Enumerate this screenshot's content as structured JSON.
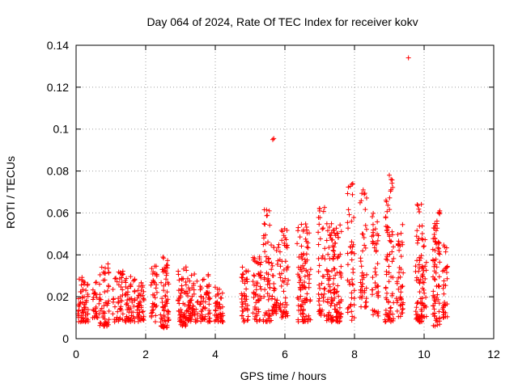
{
  "chart_data": {
    "type": "scatter",
    "title": "Day 064 of 2024, Rate Of TEC Index for receiver kokv",
    "xlabel": "GPS time / hours",
    "ylabel": "ROTI / TECUs",
    "xlim": [
      0,
      12
    ],
    "ylim": [
      0,
      0.14
    ],
    "xticks": [
      0,
      2,
      4,
      6,
      8,
      10,
      12
    ],
    "xtick_labels": [
      "0",
      "2",
      "4",
      "6",
      "8",
      "10",
      "12"
    ],
    "yticks": [
      0,
      0.02,
      0.04,
      0.06,
      0.08,
      0.1,
      0.12,
      0.14
    ],
    "ytick_labels": [
      "0",
      "0.02",
      "0.04",
      "0.06",
      "0.08",
      "0.1",
      "0.12",
      "0.14"
    ],
    "grid": true,
    "marker": "+",
    "color": "#ff0000",
    "series": [
      {
        "name": "ROTI",
        "clusters": [
          {
            "x": 0.2,
            "width": 0.3,
            "ymin": 0.008,
            "ymax": 0.03,
            "n": 60
          },
          {
            "x": 0.55,
            "width": 0.15,
            "ymin": 0.01,
            "ymax": 0.028,
            "n": 25
          },
          {
            "x": 0.8,
            "width": 0.3,
            "ymin": 0.006,
            "ymax": 0.036,
            "n": 55
          },
          {
            "x": 1.2,
            "width": 0.3,
            "ymin": 0.008,
            "ymax": 0.033,
            "n": 45
          },
          {
            "x": 1.55,
            "width": 0.3,
            "ymin": 0.008,
            "ymax": 0.03,
            "n": 55
          },
          {
            "x": 1.85,
            "width": 0.2,
            "ymin": 0.008,
            "ymax": 0.027,
            "n": 45
          },
          {
            "x": 2.25,
            "width": 0.2,
            "ymin": 0.008,
            "ymax": 0.035,
            "n": 35
          },
          {
            "x": 2.55,
            "width": 0.25,
            "ymin": 0.005,
            "ymax": 0.039,
            "n": 70
          },
          {
            "x": 3.05,
            "width": 0.25,
            "ymin": 0.006,
            "ymax": 0.037,
            "n": 60
          },
          {
            "x": 3.35,
            "width": 0.3,
            "ymin": 0.008,
            "ymax": 0.031,
            "n": 60
          },
          {
            "x": 3.7,
            "width": 0.3,
            "ymin": 0.008,
            "ymax": 0.031,
            "n": 60
          },
          {
            "x": 4.1,
            "width": 0.25,
            "ymin": 0.008,
            "ymax": 0.025,
            "n": 45
          },
          {
            "x": 4.85,
            "width": 0.2,
            "ymin": 0.008,
            "ymax": 0.038,
            "n": 45
          },
          {
            "x": 5.2,
            "width": 0.25,
            "ymin": 0.008,
            "ymax": 0.04,
            "n": 55
          },
          {
            "x": 5.5,
            "width": 0.25,
            "ymin": 0.008,
            "ymax": 0.062,
            "n": 55
          },
          {
            "x": 5.75,
            "width": 0.25,
            "ymin": 0.012,
            "ymax": 0.045,
            "n": 45
          },
          {
            "x": 6.0,
            "width": 0.2,
            "ymin": 0.01,
            "ymax": 0.054,
            "n": 45
          },
          {
            "x": 6.45,
            "width": 0.2,
            "ymin": 0.008,
            "ymax": 0.057,
            "n": 55
          },
          {
            "x": 6.65,
            "width": 0.2,
            "ymin": 0.008,
            "ymax": 0.055,
            "n": 45
          },
          {
            "x": 7.05,
            "width": 0.2,
            "ymin": 0.01,
            "ymax": 0.063,
            "n": 45
          },
          {
            "x": 7.3,
            "width": 0.2,
            "ymin": 0.008,
            "ymax": 0.055,
            "n": 55
          },
          {
            "x": 7.5,
            "width": 0.25,
            "ymin": 0.008,
            "ymax": 0.055,
            "n": 75
          },
          {
            "x": 7.9,
            "width": 0.2,
            "ymin": 0.008,
            "ymax": 0.075,
            "n": 45
          },
          {
            "x": 8.25,
            "width": 0.2,
            "ymin": 0.015,
            "ymax": 0.072,
            "n": 45
          },
          {
            "x": 8.6,
            "width": 0.2,
            "ymin": 0.01,
            "ymax": 0.06,
            "n": 45
          },
          {
            "x": 9.0,
            "width": 0.25,
            "ymin": 0.008,
            "ymax": 0.079,
            "n": 75
          },
          {
            "x": 9.3,
            "width": 0.2,
            "ymin": 0.01,
            "ymax": 0.055,
            "n": 45
          },
          {
            "x": 9.85,
            "width": 0.2,
            "ymin": 0.008,
            "ymax": 0.065,
            "n": 60
          },
          {
            "x": 10.0,
            "width": 0.15,
            "ymin": 0.01,
            "ymax": 0.055,
            "n": 35
          },
          {
            "x": 10.35,
            "width": 0.2,
            "ymin": 0.006,
            "ymax": 0.061,
            "n": 75
          },
          {
            "x": 10.6,
            "width": 0.15,
            "ymin": 0.01,
            "ymax": 0.045,
            "n": 35
          }
        ],
        "outliers": [
          {
            "x": 9.55,
            "y": 0.134
          },
          {
            "x": 5.65,
            "y": 0.095
          },
          {
            "x": 5.68,
            "y": 0.0955
          },
          {
            "x": 9.0,
            "y": 0.078
          },
          {
            "x": 9.05,
            "y": 0.076
          },
          {
            "x": 7.95,
            "y": 0.074
          },
          {
            "x": 8.25,
            "y": 0.071
          },
          {
            "x": 7.0,
            "y": 0.062
          },
          {
            "x": 5.55,
            "y": 0.061
          },
          {
            "x": 9.8,
            "y": 0.064
          },
          {
            "x": 10.45,
            "y": 0.061
          }
        ]
      }
    ]
  }
}
